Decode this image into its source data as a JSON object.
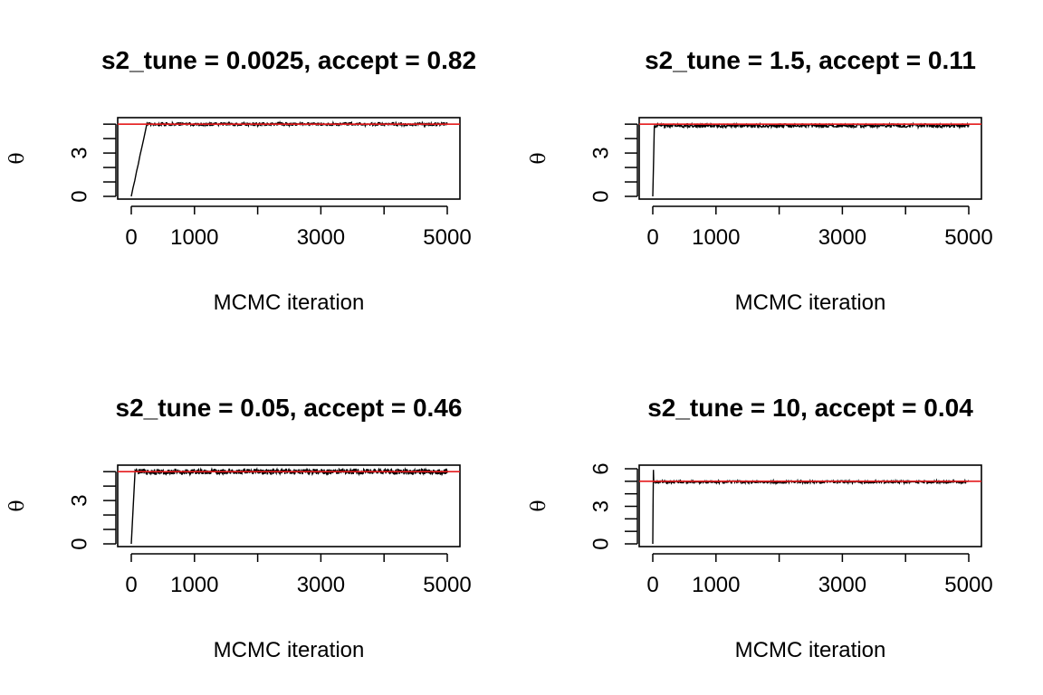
{
  "chart_data": [
    {
      "type": "line",
      "title": "s2_tune = 0.0025, accept = 0.82",
      "xlabel": "MCMC iteration",
      "ylabel": "θ",
      "xlim": [
        0,
        5000
      ],
      "ylim": [
        0,
        5.2
      ],
      "x_tick_labels": [
        "0",
        "1000",
        "3000",
        "5000"
      ],
      "x_ticks": [
        0,
        1000,
        2000,
        3000,
        4000,
        5000
      ],
      "y_tick_labels": [
        "0",
        "3"
      ],
      "y_ticks": [
        0,
        1,
        2,
        3,
        4,
        5
      ],
      "reference_line": {
        "value": 5,
        "color": "#e41a1c"
      },
      "series": [
        {
          "color": "#000000",
          "x": [
            0,
            250,
            5000
          ],
          "y": [
            0,
            5.1,
            5.0
          ],
          "noise": 0.1,
          "burn_in_end": 250
        }
      ]
    },
    {
      "type": "line",
      "title": "s2_tune = 1.5, accept = 0.11",
      "xlabel": "MCMC iteration",
      "ylabel": "θ",
      "xlim": [
        0,
        5000
      ],
      "ylim": [
        0,
        5.2
      ],
      "x_tick_labels": [
        "0",
        "1000",
        "3000",
        "5000"
      ],
      "x_ticks": [
        0,
        1000,
        2000,
        3000,
        4000,
        5000
      ],
      "y_tick_labels": [
        "0",
        "3"
      ],
      "y_ticks": [
        0,
        1,
        2,
        3,
        4,
        5
      ],
      "reference_line": {
        "value": 5,
        "color": "#e41a1c"
      },
      "series": [
        {
          "color": "#000000",
          "x": [
            0,
            25,
            5000
          ],
          "y": [
            0,
            4.9,
            4.9
          ],
          "noise": 0.12,
          "burn_in_end": 25
        }
      ]
    },
    {
      "type": "line",
      "title": "s2_tune = 0.05, accept = 0.46",
      "xlabel": "MCMC iteration",
      "ylabel": "θ",
      "xlim": [
        0,
        5000
      ],
      "ylim": [
        0,
        5.2
      ],
      "x_tick_labels": [
        "0",
        "1000",
        "3000",
        "5000"
      ],
      "x_ticks": [
        0,
        1000,
        2000,
        3000,
        4000,
        5000
      ],
      "y_tick_labels": [
        "0",
        "3"
      ],
      "y_ticks": [
        0,
        1,
        2,
        3,
        4,
        5
      ],
      "reference_line": {
        "value": 5,
        "color": "#e41a1c"
      },
      "series": [
        {
          "color": "#000000",
          "x": [
            0,
            60,
            5000
          ],
          "y": [
            0,
            5.0,
            5.0
          ],
          "noise": 0.18,
          "burn_in_end": 60
        }
      ]
    },
    {
      "type": "line",
      "title": "s2_tune = 10, accept = 0.04",
      "xlabel": "MCMC iteration",
      "ylabel": "θ",
      "xlim": [
        0,
        5000
      ],
      "ylim": [
        0,
        6
      ],
      "x_tick_labels": [
        "0",
        "1000",
        "3000",
        "5000"
      ],
      "x_ticks": [
        0,
        1000,
        2000,
        3000,
        4000,
        5000
      ],
      "y_tick_labels": [
        "0",
        "3",
        "6"
      ],
      "y_ticks": [
        0,
        1,
        2,
        3,
        4,
        5,
        6
      ],
      "reference_line": {
        "value": 5,
        "color": "#e41a1c"
      },
      "series": [
        {
          "color": "#000000",
          "x": [
            0,
            10,
            5000
          ],
          "y": [
            0,
            5.9,
            4.95
          ],
          "noise": 0.1,
          "burn_in_end": 10
        }
      ]
    }
  ]
}
